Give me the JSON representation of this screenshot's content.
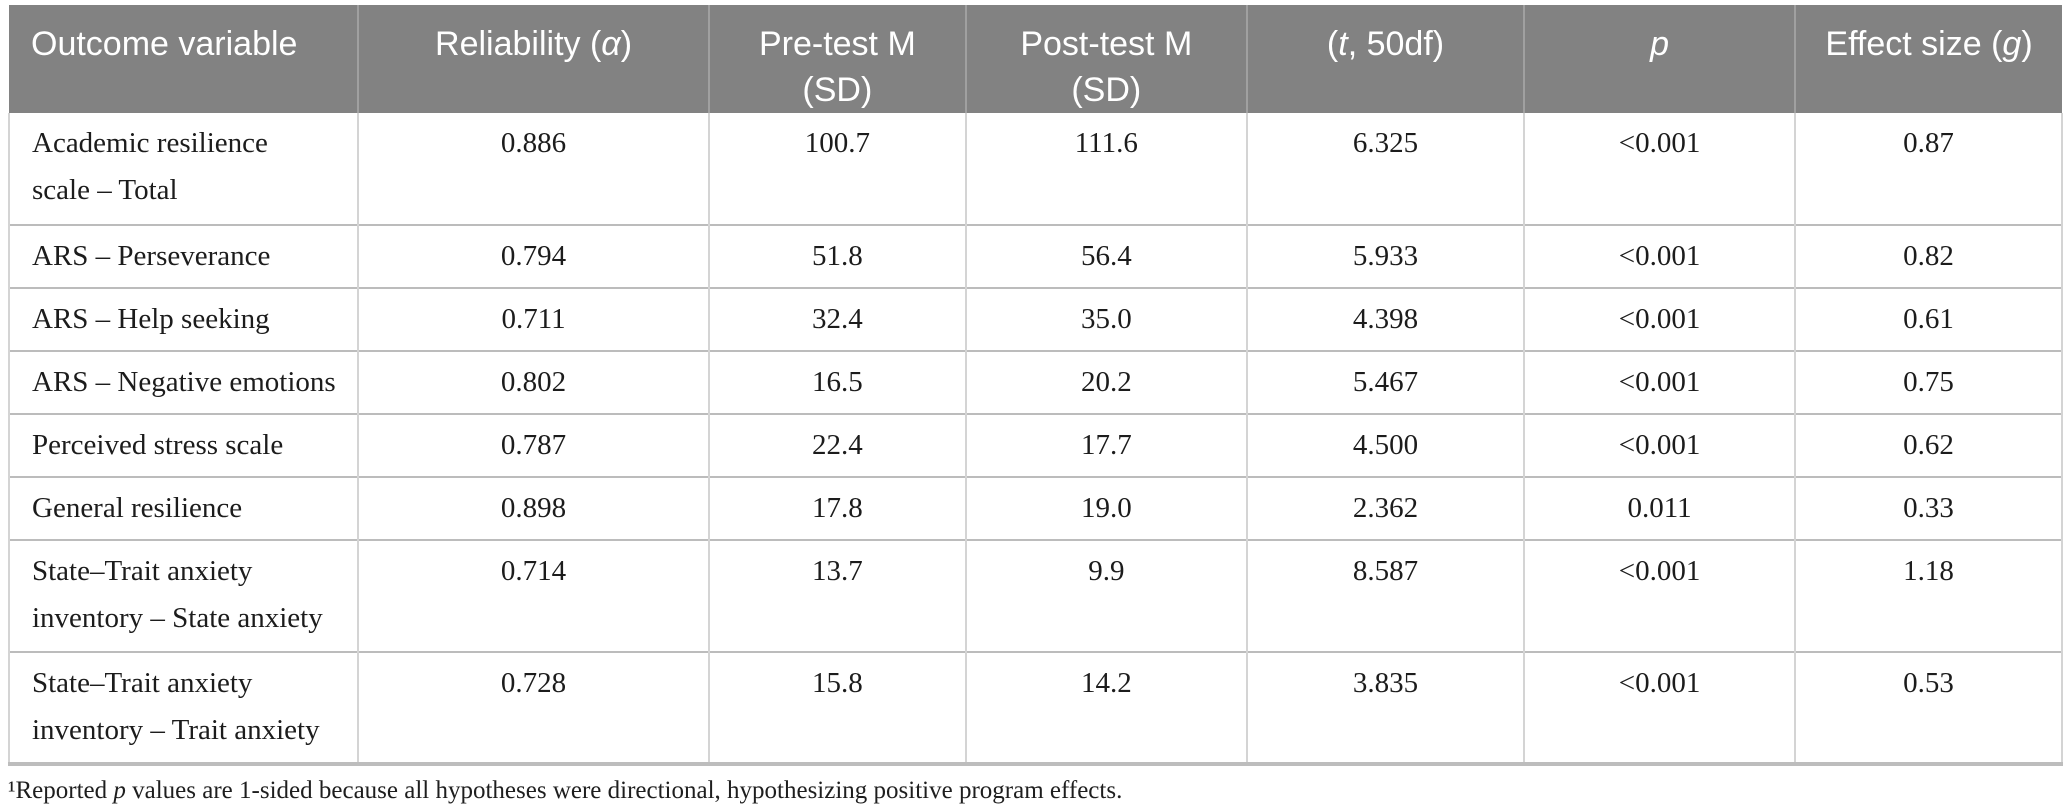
{
  "colors": {
    "header_bg": "#828282",
    "header_text": "#ffffff",
    "header_divider": "#a0a0a0",
    "row_border": "#bcbcbc",
    "col_border": "#d4d4d4",
    "bottom_border": "#bdbdbd",
    "body_text": "#1c1c1c",
    "page_bg": "#ffffff"
  },
  "table": {
    "columns": [
      {
        "id": "outcome",
        "width": "17.0%",
        "align": "left",
        "label_parts": [
          {
            "t": "Outcome variable"
          }
        ]
      },
      {
        "id": "reliability",
        "width": "17.1%",
        "align": "center",
        "label_parts": [
          {
            "t": "Reliability ("
          },
          {
            "t": "α",
            "i": true
          },
          {
            "t": ")"
          }
        ]
      },
      {
        "id": "pretest",
        "width": "12.5%",
        "align": "center",
        "label_parts": [
          {
            "t": "Pre-test M\n(SD)"
          }
        ]
      },
      {
        "id": "posttest",
        "width": "13.7%",
        "align": "center",
        "label_parts": [
          {
            "t": "Post-test M\n(SD)"
          }
        ]
      },
      {
        "id": "t50df",
        "width": "13.5%",
        "align": "center",
        "label_parts": [
          {
            "t": "("
          },
          {
            "t": "t",
            "i": true
          },
          {
            "t": ", 50df)"
          }
        ]
      },
      {
        "id": "p",
        "width": "13.2%",
        "align": "center",
        "label_parts": [
          {
            "t": "p",
            "i": true
          }
        ]
      },
      {
        "id": "effect",
        "width": "13.0%",
        "align": "center",
        "label_parts": [
          {
            "t": "Effect size ("
          },
          {
            "t": "g",
            "i": true
          },
          {
            "t": ")"
          }
        ]
      }
    ],
    "rows": [
      {
        "tall": true,
        "outcome": "Academic resilience\nscale – Total",
        "reliability": "0.886",
        "pretest": "100.7",
        "posttest": "111.6",
        "t50df": "6.325",
        "p": "<0.001",
        "effect": "0.87"
      },
      {
        "tall": false,
        "outcome": "ARS – Perseverance",
        "reliability": "0.794",
        "pretest": "51.8",
        "posttest": "56.4",
        "t50df": "5.933",
        "p": "<0.001",
        "effect": "0.82"
      },
      {
        "tall": false,
        "outcome": "ARS – Help seeking",
        "reliability": "0.711",
        "pretest": "32.4",
        "posttest": "35.0",
        "t50df": "4.398",
        "p": "<0.001",
        "effect": "0.61"
      },
      {
        "tall": false,
        "outcome": "ARS – Negative emotions",
        "reliability": "0.802",
        "pretest": "16.5",
        "posttest": "20.2",
        "t50df": "5.467",
        "p": "<0.001",
        "effect": "0.75"
      },
      {
        "tall": false,
        "outcome": "Perceived stress scale",
        "reliability": "0.787",
        "pretest": "22.4",
        "posttest": "17.7",
        "t50df": "4.500",
        "p": "<0.001",
        "effect": "0.62"
      },
      {
        "tall": false,
        "outcome": "General resilience",
        "reliability": "0.898",
        "pretest": "17.8",
        "posttest": "19.0",
        "t50df": "2.362",
        "p": "0.011",
        "effect": "0.33"
      },
      {
        "tall": true,
        "outcome": "State–Trait anxiety\ninventory – State anxiety",
        "reliability": "0.714",
        "pretest": "13.7",
        "posttest": "9.9",
        "t50df": "8.587",
        "p": "<0.001",
        "effect": "1.18"
      },
      {
        "tall": true,
        "outcome": "State–Trait anxiety\ninventory – Trait anxiety",
        "reliability": "0.728",
        "pretest": "15.8",
        "posttest": "14.2",
        "t50df": "3.835",
        "p": "<0.001",
        "effect": "0.53"
      }
    ]
  },
  "footnote_parts": [
    {
      "t": "¹Reported "
    },
    {
      "t": "p",
      "i": true
    },
    {
      "t": " values are 1-sided because all hypotheses were directional, hypothesizing positive program effects."
    }
  ]
}
